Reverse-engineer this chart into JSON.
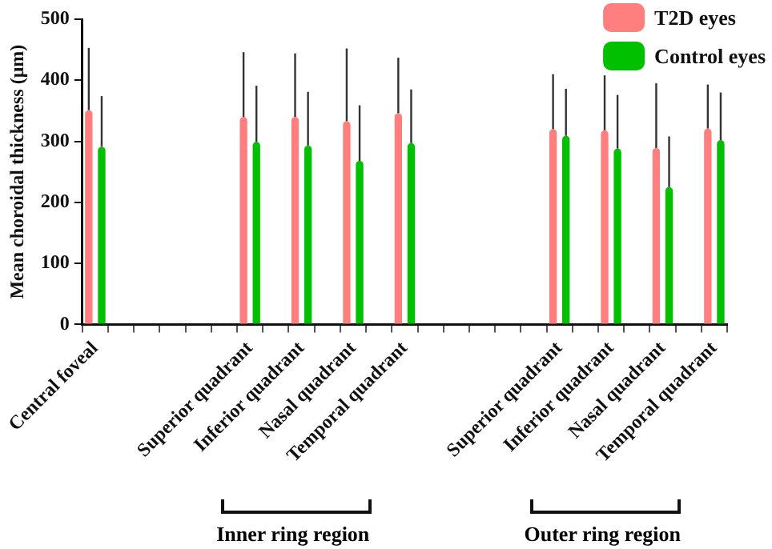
{
  "chart_data": {
    "type": "bar",
    "ylabel": "Mean choroidal thickness (μm)",
    "categories": [
      "Central foveal",
      null,
      null,
      null,
      null,
      null,
      "Superior quadrant",
      null,
      "Inferior quadrant",
      null,
      "Nasal quadrant",
      null,
      "Temporal quadrant",
      null,
      null,
      null,
      null,
      null,
      "Superior quadrant",
      null,
      "Inferior quadrant",
      null,
      "Nasal quadrant",
      null,
      "Temporal quadrant"
    ],
    "series": [
      {
        "name": "T2D eyes",
        "color": "#ff7f7f",
        "values": [
          351,
          null,
          null,
          null,
          null,
          null,
          340,
          null,
          340,
          null,
          333,
          null,
          346,
          null,
          null,
          null,
          null,
          null,
          320,
          null,
          318,
          null,
          289,
          null,
          321
        ],
        "errors": [
          [
            351,
            453
          ],
          null,
          null,
          null,
          null,
          null,
          [
            340,
            446
          ],
          null,
          [
            340,
            444
          ],
          null,
          [
            333,
            452
          ],
          null,
          [
            346,
            437
          ],
          null,
          null,
          null,
          null,
          null,
          [
            320,
            410
          ],
          null,
          [
            318,
            408
          ],
          null,
          [
            289,
            395
          ],
          null,
          [
            321,
            393
          ]
        ]
      },
      {
        "name": "Control eyes",
        "color": "#00c000",
        "values": [
          291,
          null,
          null,
          null,
          null,
          null,
          299,
          null,
          293,
          null,
          268,
          null,
          297,
          null,
          null,
          null,
          null,
          null,
          309,
          null,
          288,
          null,
          225,
          null,
          302
        ],
        "errors": [
          [
            291,
            374
          ],
          null,
          null,
          null,
          null,
          null,
          [
            299,
            391
          ],
          null,
          [
            293,
            381
          ],
          null,
          [
            268,
            359
          ],
          null,
          [
            297,
            385
          ],
          null,
          null,
          null,
          null,
          null,
          [
            309,
            386
          ],
          null,
          [
            288,
            376
          ],
          null,
          [
            225,
            308
          ],
          null,
          [
            302,
            380
          ]
        ]
      }
    ],
    "ylim": [
      0,
      500
    ],
    "yticks": [
      0,
      100,
      200,
      300,
      400,
      500
    ],
    "grid": false,
    "legend": "top right",
    "annotations": [
      "Inner ring region",
      "Outer ring region"
    ]
  }
}
